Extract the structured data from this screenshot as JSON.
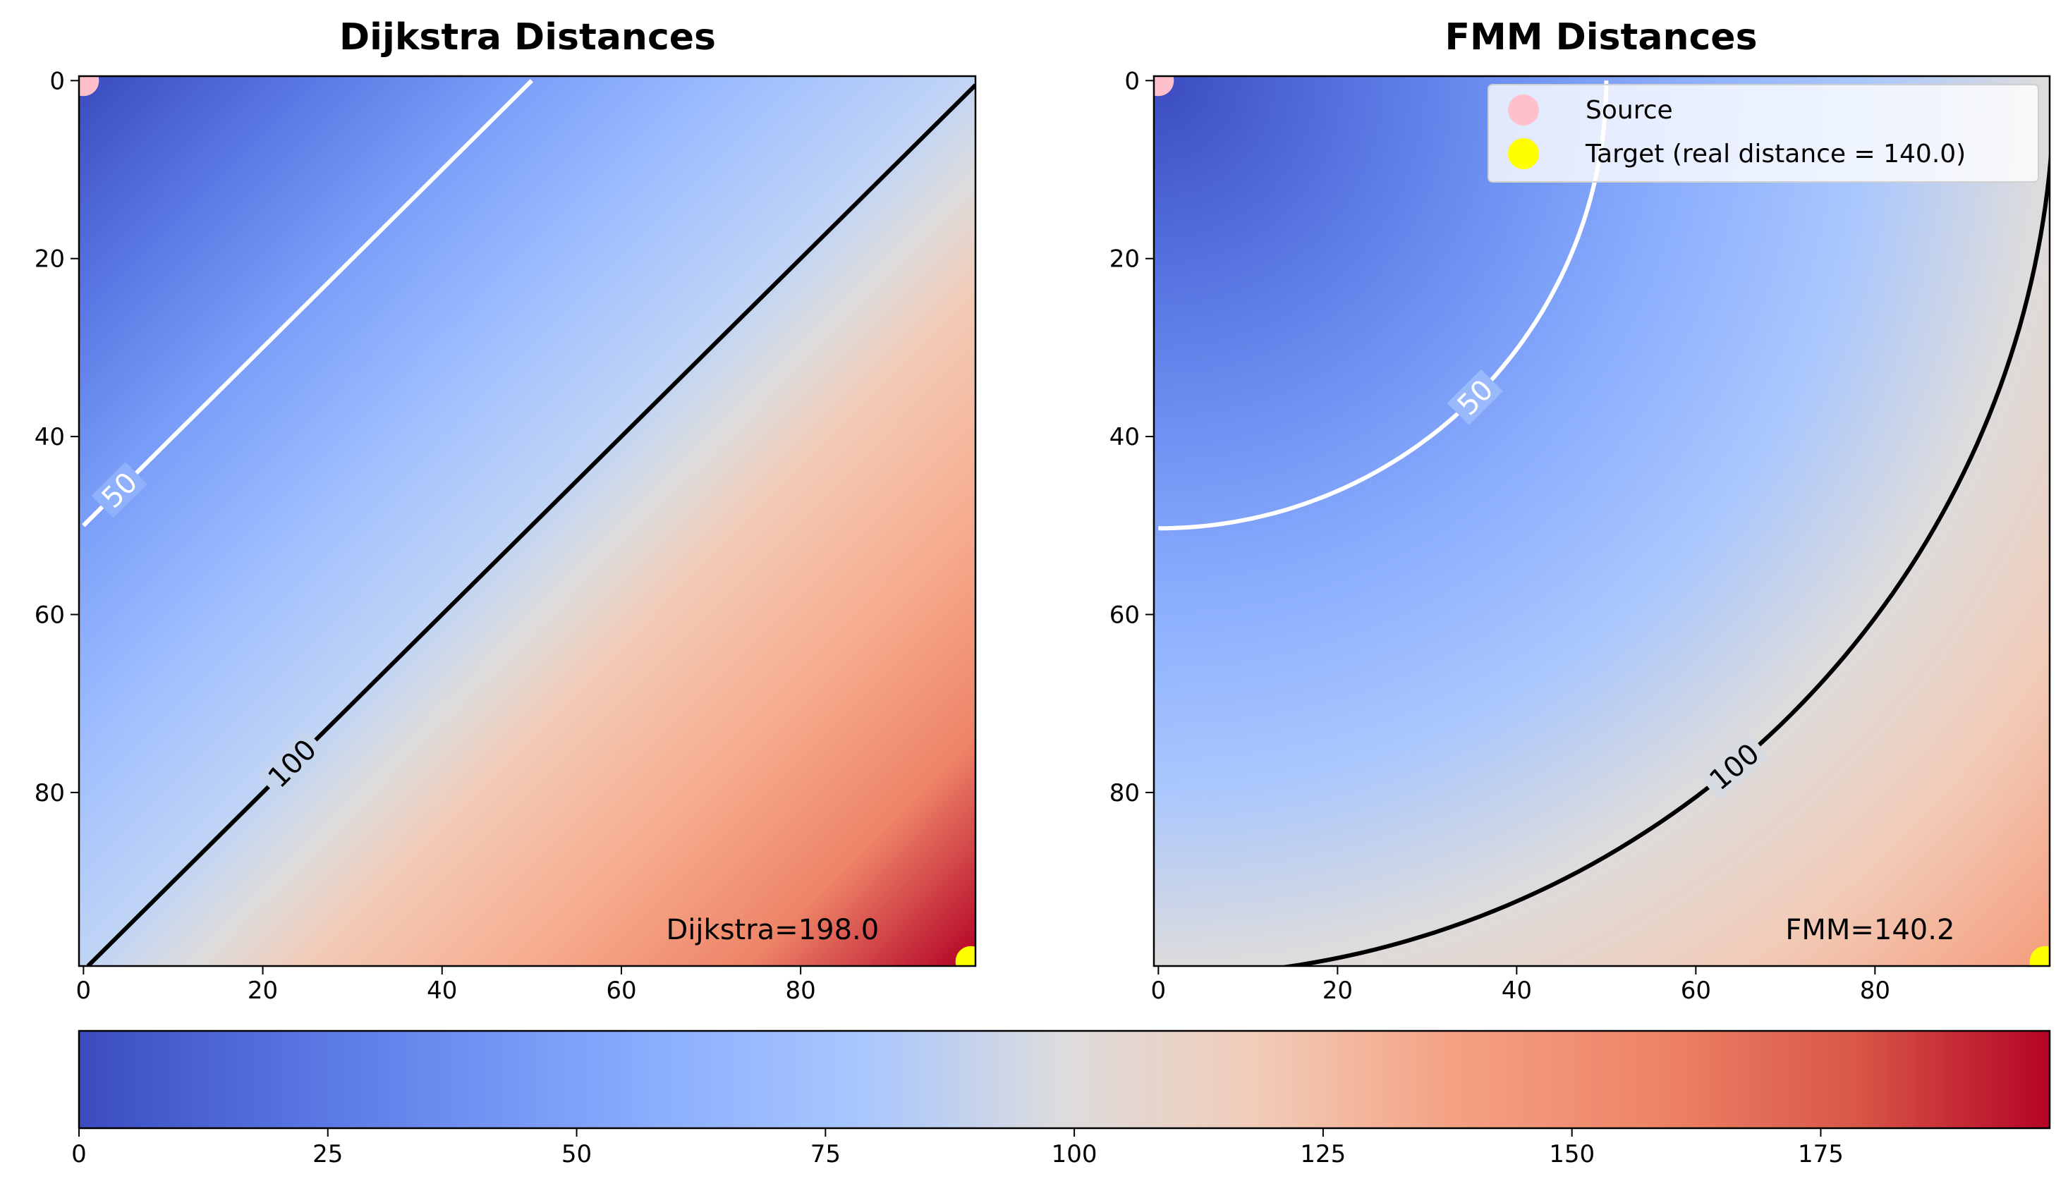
{
  "chart_data": [
    {
      "type": "heatmap",
      "title": "Dijkstra Distances",
      "metric": "manhattan",
      "grid_size": [
        100,
        100
      ],
      "xlim": [
        -0.5,
        99.5
      ],
      "ylim": [
        99.5,
        -0.5
      ],
      "xticks": [
        0,
        20,
        40,
        60,
        80
      ],
      "yticks": [
        0,
        20,
        40,
        60,
        80
      ],
      "contours": [
        {
          "level": 50,
          "label": "50",
          "color": "#ffffff"
        },
        {
          "level": 100,
          "label": "100",
          "color": "#000000"
        }
      ],
      "source": {
        "x": 0,
        "y": 0,
        "color": "#ffc0cb"
      },
      "target": {
        "x": 99,
        "y": 99,
        "color": "#ffff00"
      },
      "annotation": "Dijkstra=198.0",
      "legend": false
    },
    {
      "type": "heatmap",
      "title": "FMM Distances",
      "metric": "euclidean",
      "grid_size": [
        100,
        100
      ],
      "xlim": [
        -0.5,
        99.5
      ],
      "ylim": [
        99.5,
        -0.5
      ],
      "xticks": [
        0,
        20,
        40,
        60,
        80
      ],
      "yticks": [
        0,
        20,
        40,
        60,
        80
      ],
      "contours": [
        {
          "level": 50,
          "label": "50",
          "color": "#ffffff"
        },
        {
          "level": 100,
          "label": "100",
          "color": "#000000"
        }
      ],
      "source": {
        "x": 0,
        "y": 0,
        "color": "#ffc0cb"
      },
      "target": {
        "x": 99,
        "y": 99,
        "color": "#ffff00"
      },
      "annotation": "FMM=140.2",
      "legend": true
    }
  ],
  "legend": {
    "placement": "top-right",
    "entries": [
      {
        "label": "Source",
        "color": "#ffc0cb"
      },
      {
        "label": "Target (real distance = 140.0)",
        "color": "#ffff00"
      }
    ]
  },
  "colorbar": {
    "colormap": "coolwarm",
    "range": [
      0,
      198
    ],
    "ticks": [
      0,
      25,
      50,
      75,
      100,
      125,
      150,
      175
    ],
    "orientation": "horizontal"
  }
}
